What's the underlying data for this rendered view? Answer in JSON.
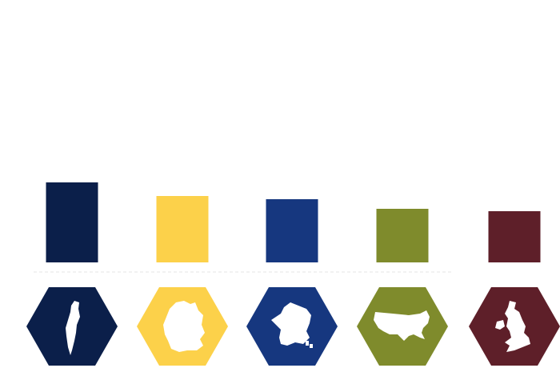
{
  "chart_data": {
    "type": "bar",
    "title": "",
    "xlabel": "",
    "ylabel": "",
    "ylim": [
      0,
      2.5
    ],
    "grid": false,
    "legend": "none",
    "categories": [
      {
        "icon": "israel-map-icon",
        "color": "#0b1f4a"
      },
      {
        "icon": "germany-map-icon",
        "color": "#fcd14a"
      },
      {
        "icon": "france-map-icon",
        "color": "#16377f"
      },
      {
        "icon": "usa-map-icon",
        "color": "#7f8b2c"
      },
      {
        "icon": "uk-map-icon",
        "color": "#5e1f29"
      }
    ],
    "values": [
      1.0,
      0.83,
      0.79,
      0.67,
      0.64
    ]
  }
}
